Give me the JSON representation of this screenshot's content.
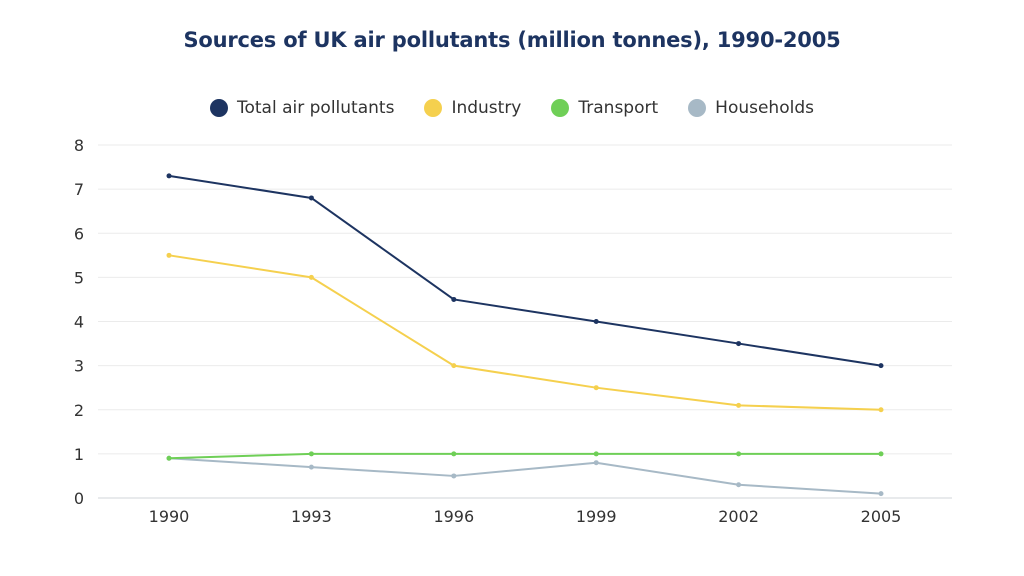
{
  "chart_data": {
    "type": "line",
    "title": "Sources of UK air pollutants (million tonnes), 1990-2005",
    "xlabel": "",
    "ylabel": "",
    "x": [
      "1990",
      "1993",
      "1996",
      "1999",
      "2002",
      "2005"
    ],
    "ylim": [
      0,
      8
    ],
    "yticks": [
      "0",
      "1",
      "2",
      "3",
      "4",
      "5",
      "6",
      "7",
      "8"
    ],
    "grid": true,
    "legend_position": "top-center",
    "series": [
      {
        "name": "Total air pollutants",
        "color": "#1d3461",
        "values": [
          7.3,
          6.8,
          4.5,
          4.0,
          3.5,
          3.0
        ]
      },
      {
        "name": "Industry",
        "color": "#f5d04e",
        "values": [
          5.5,
          5.0,
          3.0,
          2.5,
          2.1,
          2.0
        ]
      },
      {
        "name": "Transport",
        "color": "#6fcf57",
        "values": [
          0.9,
          1.0,
          1.0,
          1.0,
          1.0,
          1.0
        ]
      },
      {
        "name": "Households",
        "color": "#a7b9c6",
        "values": [
          0.9,
          0.7,
          0.5,
          0.8,
          0.3,
          0.1
        ]
      }
    ]
  }
}
